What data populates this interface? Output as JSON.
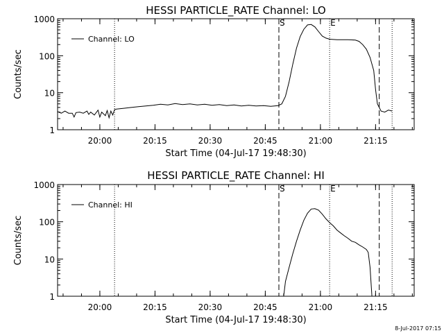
{
  "footer_timestamp": "8-Jul-2017 07:15",
  "chart_data": [
    {
      "type": "line",
      "title": "HESSI PARTICLE_RATE Channel: LO",
      "xlabel": "Start Time (04-Jul-17 19:48:30)",
      "ylabel": "Counts/sec",
      "yscale": "log",
      "ylim": [
        1,
        1000
      ],
      "xlim_minutes": [
        0,
        97
      ],
      "xtick_minutes": [
        11.5,
        26.5,
        41.5,
        56.5,
        71.5,
        86.5
      ],
      "xtick_labels": [
        "20:00",
        "20:15",
        "20:30",
        "20:45",
        "21:00",
        "21:15"
      ],
      "ytick_values": [
        1,
        10,
        100,
        1000
      ],
      "ytick_labels": [
        "1",
        "10",
        "100",
        "1000"
      ],
      "legend": "Channel: LO",
      "legend_position": "upper-left",
      "markers": [
        {
          "label": "S",
          "minute": 60.2,
          "style": "dashed"
        },
        {
          "label": "E",
          "minute": 74.0,
          "style": "dotted"
        },
        {
          "label": "",
          "minute": 15.5,
          "style": "dotted"
        },
        {
          "label": "",
          "minute": 87.5,
          "style": "dashed"
        },
        {
          "label": "",
          "minute": 91.0,
          "style": "dotted"
        }
      ],
      "series": [
        {
          "name": "Channel: LO",
          "x": [
            0,
            1,
            2,
            3,
            4,
            4.5,
            5,
            6,
            7,
            8,
            8.5,
            9,
            10,
            11,
            11.5,
            12,
            13,
            13.5,
            14,
            14.5,
            15,
            15.5,
            16,
            18,
            20,
            22,
            24,
            26,
            28,
            30,
            32,
            34,
            36,
            38,
            40,
            42,
            44,
            46,
            48,
            50,
            52,
            54,
            56,
            58,
            60,
            61,
            62,
            63,
            64,
            65,
            66,
            67,
            68,
            69,
            70,
            71,
            72,
            73,
            74,
            75,
            76,
            77,
            78,
            79,
            80,
            81,
            82,
            83,
            84,
            85,
            86,
            86.5,
            87,
            88,
            89,
            90,
            91
          ],
          "y": [
            3.1,
            2.8,
            3.2,
            2.8,
            2.8,
            2.2,
            2.9,
            3.0,
            2.8,
            3.2,
            2.6,
            3.0,
            2.5,
            3.4,
            2.2,
            3.0,
            2.4,
            3.3,
            2.1,
            3.2,
            2.5,
            3.5,
            3.6,
            3.8,
            4.0,
            4.2,
            4.4,
            4.6,
            4.9,
            4.7,
            5.1,
            4.8,
            5.0,
            4.7,
            4.9,
            4.6,
            4.8,
            4.5,
            4.7,
            4.4,
            4.6,
            4.4,
            4.5,
            4.3,
            4.5,
            5.0,
            8.0,
            20,
            60,
            160,
            330,
            520,
            680,
            700,
            600,
            450,
            340,
            300,
            280,
            275,
            270,
            272,
            270,
            270,
            268,
            265,
            245,
            200,
            150,
            90,
            40,
            12,
            5,
            3.2,
            3.0,
            3.4,
            3.2
          ]
        }
      ]
    },
    {
      "type": "line",
      "title": "HESSI PARTICLE_RATE Channel: HI",
      "xlabel": "Start Time (04-Jul-17 19:48:30)",
      "ylabel": "Counts/sec",
      "yscale": "log",
      "ylim": [
        1,
        1000
      ],
      "xlim_minutes": [
        0,
        97
      ],
      "xtick_minutes": [
        11.5,
        26.5,
        41.5,
        56.5,
        71.5,
        86.5
      ],
      "xtick_labels": [
        "20:00",
        "20:15",
        "20:30",
        "20:45",
        "21:00",
        "21:15"
      ],
      "ytick_values": [
        1,
        10,
        100,
        1000
      ],
      "ytick_labels": [
        "1",
        "10",
        "100",
        "1000"
      ],
      "legend": "Channel: HI",
      "legend_position": "upper-left",
      "markers": [
        {
          "label": "S",
          "minute": 60.2,
          "style": "dashed"
        },
        {
          "label": "E",
          "minute": 74.0,
          "style": "dotted"
        },
        {
          "label": "",
          "minute": 15.5,
          "style": "dotted"
        },
        {
          "label": "",
          "minute": 87.5,
          "style": "dashed"
        },
        {
          "label": "",
          "minute": 91.0,
          "style": "dotted"
        }
      ],
      "series": [
        {
          "name": "Channel: HI",
          "x": [
            61.5,
            62,
            63,
            64,
            65,
            66,
            67,
            68,
            69,
            70,
            71,
            72,
            73,
            74,
            75,
            76,
            77,
            78,
            79,
            80,
            81,
            82,
            83,
            84,
            84.5,
            85,
            85.5
          ],
          "y": [
            1.0,
            2.5,
            6.0,
            14,
            30,
            60,
            110,
            170,
            220,
            225,
            205,
            160,
            120,
            95,
            78,
            60,
            50,
            42,
            36,
            30,
            28,
            24,
            21,
            18,
            15,
            6,
            1.0
          ]
        }
      ]
    }
  ]
}
